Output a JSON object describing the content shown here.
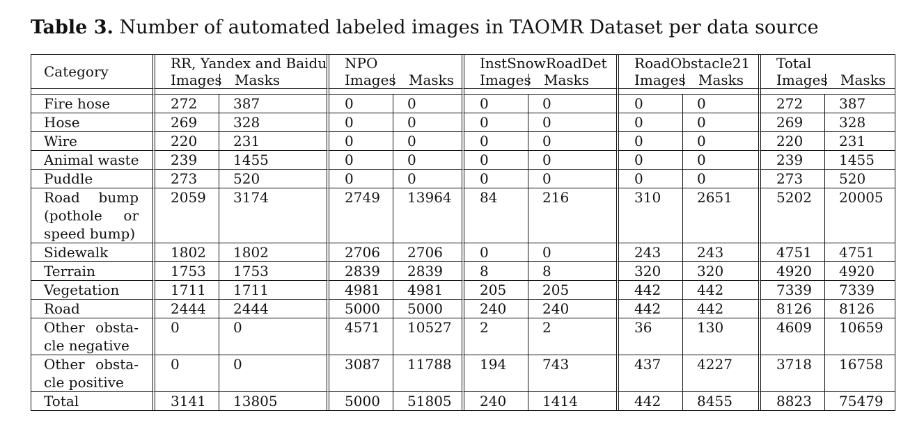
{
  "caption": {
    "label": "Table 3.",
    "text": " Number of automated labeled images in TAOMR Dataset per data source"
  },
  "table": {
    "category_header": "Category",
    "groups": [
      {
        "title": "RR, Yandex and Baidu",
        "images": "Images",
        "masks": "Masks"
      },
      {
        "title": "NPO",
        "images": "Images",
        "masks": "Masks"
      },
      {
        "title": "InstSnowRoadDet",
        "images": "Images",
        "masks": "Masks"
      },
      {
        "title": "RoadObstacle21",
        "images": "Images",
        "masks": "Masks"
      },
      {
        "title": "Total",
        "images": "Images",
        "masks": "Masks"
      }
    ],
    "rows": [
      {
        "category": "Fire hose",
        "values": [
          "272",
          "387",
          "0",
          "0",
          "0",
          "0",
          "0",
          "0",
          "272",
          "387"
        ]
      },
      {
        "category": "Hose",
        "values": [
          "269",
          "328",
          "0",
          "0",
          "0",
          "0",
          "0",
          "0",
          "269",
          "328"
        ]
      },
      {
        "category": "Wire",
        "values": [
          "220",
          "231",
          "0",
          "0",
          "0",
          "0",
          "0",
          "0",
          "220",
          "231"
        ]
      },
      {
        "category": "Animal waste",
        "values": [
          "239",
          "1455",
          "0",
          "0",
          "0",
          "0",
          "0",
          "0",
          "239",
          "1455"
        ]
      },
      {
        "category": "Puddle",
        "values": [
          "273",
          "520",
          "0",
          "0",
          "0",
          "0",
          "0",
          "0",
          "273",
          "520"
        ]
      },
      {
        "category": "Road bump (pothole or speed bump)",
        "values": [
          "2059",
          "3174",
          "2749",
          "13964",
          "84",
          "216",
          "310",
          "2651",
          "5202",
          "20005"
        ]
      },
      {
        "category": "Sidewalk",
        "values": [
          "1802",
          "1802",
          "2706",
          "2706",
          "0",
          "0",
          "243",
          "243",
          "4751",
          "4751"
        ]
      },
      {
        "category": "Terrain",
        "values": [
          "1753",
          "1753",
          "2839",
          "2839",
          "8",
          "8",
          "320",
          "320",
          "4920",
          "4920"
        ]
      },
      {
        "category": "Vegetation",
        "values": [
          "1711",
          "1711",
          "4981",
          "4981",
          "205",
          "205",
          "442",
          "442",
          "7339",
          "7339"
        ]
      },
      {
        "category": "Road",
        "values": [
          "2444",
          "2444",
          "5000",
          "5000",
          "240",
          "240",
          "442",
          "442",
          "8126",
          "8126"
        ]
      },
      {
        "category": "Other obsta- cle negative",
        "values": [
          "0",
          "0",
          "4571",
          "10527",
          "2",
          "2",
          "36",
          "130",
          "4609",
          "10659"
        ]
      },
      {
        "category": "Other obsta- cle positive",
        "values": [
          "0",
          "0",
          "3087",
          "11788",
          "194",
          "743",
          "437",
          "4227",
          "3718",
          "16758"
        ]
      },
      {
        "category": "Total",
        "values": [
          "3141",
          "13805",
          "5000",
          "51805",
          "240",
          "1414",
          "442",
          "8455",
          "8823",
          "75479"
        ]
      }
    ]
  }
}
